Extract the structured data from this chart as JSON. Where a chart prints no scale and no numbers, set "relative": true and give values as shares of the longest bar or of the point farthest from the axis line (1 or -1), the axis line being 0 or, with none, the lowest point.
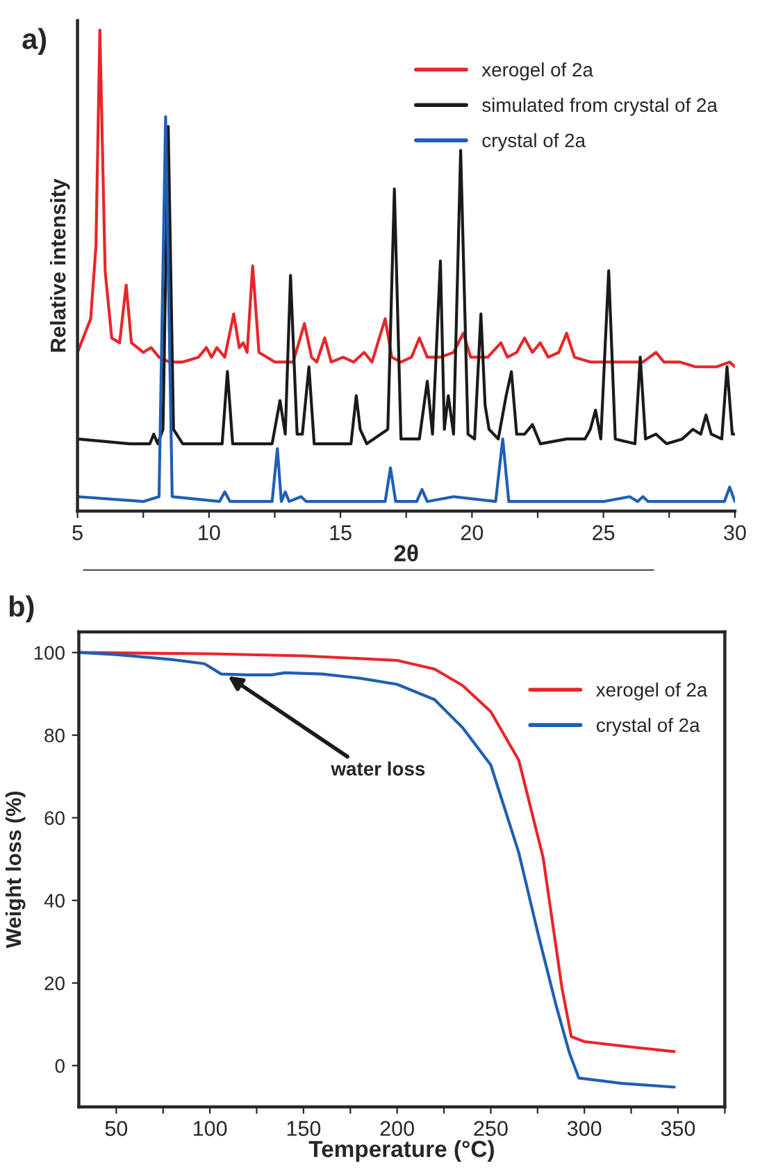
{
  "chart_data": [
    {
      "type": "line",
      "title": "a)",
      "xlabel": "2θ",
      "ylabel": "Relative intensity",
      "relative": true,
      "tick_labels": "x",
      "legend": "top right",
      "xlim": [
        5,
        30
      ],
      "xticks": [
        5,
        {
          "value": 7.5,
          "label": null
        },
        10,
        {
          "value": 12.5,
          "label": null
        },
        15,
        {
          "value": 17.5,
          "label": null
        },
        20,
        {
          "value": 22.5,
          "label": null
        },
        25,
        {
          "value": 27.5,
          "label": null
        },
        30
      ],
      "series": [
        {
          "name": "xerogel of 2a",
          "color": "#e8262a",
          "x": [
            5.0,
            5.5,
            5.7,
            5.85,
            6.05,
            6.3,
            6.6,
            6.85,
            7.05,
            7.5,
            7.8,
            8.1,
            8.5,
            9.0,
            9.6,
            9.9,
            10.1,
            10.3,
            10.6,
            10.94,
            11.15,
            11.3,
            11.45,
            11.66,
            11.9,
            12.5,
            13.2,
            13.63,
            13.9,
            14.1,
            14.4,
            14.65,
            15.1,
            15.5,
            15.9,
            16.2,
            16.7,
            16.95,
            17.3,
            17.7,
            18.0,
            18.3,
            18.8,
            19.3,
            19.67,
            19.95,
            20.6,
            21.1,
            21.35,
            21.7,
            22.0,
            22.3,
            22.6,
            22.9,
            23.3,
            23.6,
            23.9,
            24.5,
            25.5,
            26.5,
            27.0,
            27.3,
            27.9,
            28.5,
            29.3,
            29.8,
            30.0
          ],
          "values": [
            0.33,
            0.4,
            0.55,
            1.0,
            0.5,
            0.36,
            0.35,
            0.47,
            0.35,
            0.33,
            0.34,
            0.32,
            0.31,
            0.31,
            0.32,
            0.34,
            0.32,
            0.34,
            0.32,
            0.41,
            0.34,
            0.35,
            0.33,
            0.51,
            0.33,
            0.31,
            0.31,
            0.39,
            0.32,
            0.31,
            0.36,
            0.31,
            0.32,
            0.31,
            0.33,
            0.31,
            0.4,
            0.32,
            0.31,
            0.32,
            0.36,
            0.32,
            0.32,
            0.33,
            0.37,
            0.32,
            0.32,
            0.35,
            0.32,
            0.33,
            0.36,
            0.33,
            0.35,
            0.32,
            0.33,
            0.37,
            0.32,
            0.31,
            0.31,
            0.31,
            0.33,
            0.31,
            0.31,
            0.3,
            0.3,
            0.31,
            0.3
          ]
        },
        {
          "name": "simulated from crystal of 2a",
          "color": "#1a1a1a",
          "x": [
            5.0,
            7.0,
            7.75,
            7.9,
            8.05,
            8.25,
            8.45,
            8.65,
            9.0,
            10.5,
            10.7,
            10.9,
            12.4,
            12.7,
            12.9,
            13.1,
            13.35,
            13.55,
            13.8,
            14.0,
            15.4,
            15.6,
            15.75,
            16.0,
            16.8,
            17.05,
            17.3,
            18.0,
            18.3,
            18.5,
            18.8,
            18.95,
            19.1,
            19.3,
            19.57,
            19.85,
            20.1,
            20.34,
            20.5,
            20.65,
            21.0,
            21.3,
            21.5,
            21.7,
            22.0,
            22.3,
            22.6,
            23.6,
            24.3,
            24.5,
            24.7,
            24.9,
            25.2,
            25.45,
            26.2,
            26.4,
            26.6,
            27.0,
            27.4,
            28.0,
            28.4,
            28.7,
            28.9,
            29.1,
            29.5,
            29.7,
            29.9,
            30.0
          ],
          "values": [
            0.15,
            0.14,
            0.14,
            0.16,
            0.14,
            0.17,
            0.8,
            0.17,
            0.14,
            0.14,
            0.29,
            0.14,
            0.14,
            0.23,
            0.16,
            0.49,
            0.16,
            0.16,
            0.3,
            0.14,
            0.14,
            0.24,
            0.17,
            0.14,
            0.17,
            0.67,
            0.15,
            0.15,
            0.27,
            0.16,
            0.52,
            0.17,
            0.24,
            0.16,
            0.75,
            0.16,
            0.15,
            0.41,
            0.22,
            0.17,
            0.15,
            0.24,
            0.29,
            0.16,
            0.16,
            0.18,
            0.14,
            0.15,
            0.15,
            0.17,
            0.21,
            0.15,
            0.5,
            0.15,
            0.14,
            0.32,
            0.15,
            0.16,
            0.14,
            0.15,
            0.17,
            0.16,
            0.2,
            0.16,
            0.15,
            0.3,
            0.16,
            0.16
          ]
        },
        {
          "name": "crystal of 2a",
          "color": "#1f5fb4",
          "x": [
            5.0,
            7.5,
            8.1,
            8.35,
            8.6,
            10.4,
            10.6,
            10.8,
            12.4,
            12.6,
            12.75,
            12.9,
            13.05,
            13.5,
            13.7,
            15.4,
            16.7,
            16.9,
            17.1,
            17.9,
            18.1,
            18.3,
            19.3,
            20.9,
            21.17,
            21.4,
            25.0,
            26.0,
            26.3,
            26.5,
            26.7,
            29.6,
            29.8,
            30.0
          ],
          "values": [
            0.03,
            0.02,
            0.03,
            0.82,
            0.03,
            0.02,
            0.04,
            0.02,
            0.02,
            0.13,
            0.02,
            0.04,
            0.02,
            0.03,
            0.02,
            0.02,
            0.02,
            0.09,
            0.02,
            0.02,
            0.045,
            0.02,
            0.03,
            0.02,
            0.15,
            0.02,
            0.02,
            0.03,
            0.02,
            0.03,
            0.02,
            0.02,
            0.05,
            0.02
          ]
        }
      ]
    },
    {
      "type": "line",
      "title": "b)",
      "xlabel": "Temperature (°C)",
      "ylabel": "Weight loss (%)",
      "legend": "top right",
      "xlim": [
        30,
        375
      ],
      "ylim": [
        -10,
        105
      ],
      "xticks": [
        50,
        {
          "value": 75,
          "label": null
        },
        100,
        {
          "value": 125,
          "label": null
        },
        150,
        {
          "value": 175,
          "label": null
        },
        200,
        {
          "value": 225,
          "label": null
        },
        250,
        {
          "value": 275,
          "label": null
        },
        300,
        {
          "value": 325,
          "label": null
        },
        350,
        {
          "value": 375,
          "label": null
        }
      ],
      "yticks": [
        0,
        20,
        40,
        60,
        80,
        100
      ],
      "annotations": [
        {
          "text": "water loss",
          "x": 108,
          "y": 94.8
        }
      ],
      "series": [
        {
          "name": "xerogel of 2a",
          "color": "#e8262a",
          "x": [
            30,
            100,
            150,
            200,
            220,
            235,
            250,
            265,
            278,
            288,
            293,
            300,
            325,
            348
          ],
          "values": [
            100,
            99.7,
            99.2,
            98.1,
            96,
            92,
            85.7,
            73.9,
            50.3,
            18.9,
            7,
            5.8,
            4.5,
            3.4
          ]
        },
        {
          "name": "crystal of 2a",
          "color": "#1f5fb4",
          "x": [
            30,
            50,
            80,
            97,
            100,
            106,
            120,
            133,
            140,
            160,
            180,
            200,
            220,
            235,
            250,
            265,
            275,
            285,
            292,
            297,
            320,
            348
          ],
          "values": [
            100,
            99.5,
            98.3,
            97.3,
            96.5,
            94.8,
            94.6,
            94.6,
            95.1,
            94.8,
            93.8,
            92.3,
            88.6,
            81.8,
            72.8,
            51.5,
            32.4,
            14.4,
            3.1,
            -3.0,
            -4.3,
            -5.2
          ]
        }
      ]
    }
  ]
}
